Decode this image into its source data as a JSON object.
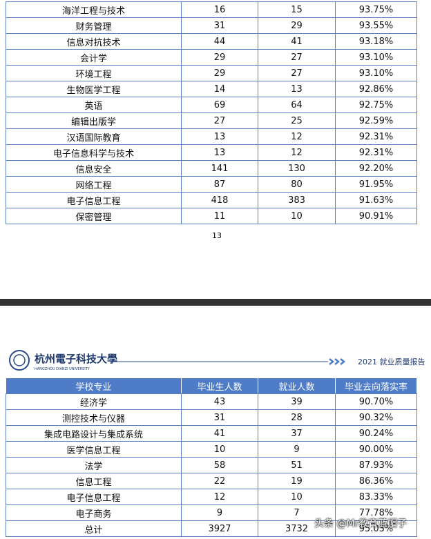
{
  "page1": {
    "table": {
      "rows": [
        [
          "海洋工程与技术",
          "16",
          "15",
          "93.75%"
        ],
        [
          "财务管理",
          "31",
          "29",
          "93.55%"
        ],
        [
          "信息对抗技术",
          "44",
          "41",
          "93.18%"
        ],
        [
          "会计学",
          "29",
          "27",
          "93.10%"
        ],
        [
          "环境工程",
          "29",
          "27",
          "93.10%"
        ],
        [
          "生物医学工程",
          "14",
          "13",
          "92.86%"
        ],
        [
          "英语",
          "69",
          "64",
          "92.75%"
        ],
        [
          "编辑出版学",
          "27",
          "25",
          "92.59%"
        ],
        [
          "汉语国际教育",
          "13",
          "12",
          "92.31%"
        ],
        [
          "电子信息科学与技术",
          "13",
          "12",
          "92.31%"
        ],
        [
          "信息安全",
          "141",
          "130",
          "92.20%"
        ],
        [
          "网络工程",
          "87",
          "80",
          "91.95%"
        ],
        [
          "电子信息工程",
          "418",
          "383",
          "91.63%"
        ],
        [
          "保密管理",
          "11",
          "10",
          "90.91%"
        ]
      ]
    },
    "page_number": "13"
  },
  "page2": {
    "header": {
      "university": "杭州電子科技大學",
      "university_en": "HANGZHOU DIANZI UNIVERSITY",
      "report_title": "2021 就业质量报告"
    },
    "table": {
      "columns": [
        "学校专业",
        "毕业生人数",
        "就业人数",
        "毕业去向落实率"
      ],
      "rows": [
        [
          "经济学",
          "43",
          "39",
          "90.70%"
        ],
        [
          "测控技术与仪器",
          "31",
          "28",
          "90.32%"
        ],
        [
          "集成电路设计与集成系统",
          "41",
          "37",
          "90.24%"
        ],
        [
          "医学信息工程",
          "10",
          "9",
          "90.00%"
        ],
        [
          "法学",
          "58",
          "51",
          "87.93%"
        ],
        [
          "信息工程",
          "22",
          "19",
          "86.36%"
        ],
        [
          "电子信息工程",
          "12",
          "10",
          "83.33%"
        ],
        [
          "电子商务",
          "9",
          "7",
          "77.78%"
        ],
        [
          "总计",
          "3927",
          "3732",
          "95.03%"
        ]
      ]
    }
  },
  "watermark": "头条 @Mr教育蓝帽子"
}
